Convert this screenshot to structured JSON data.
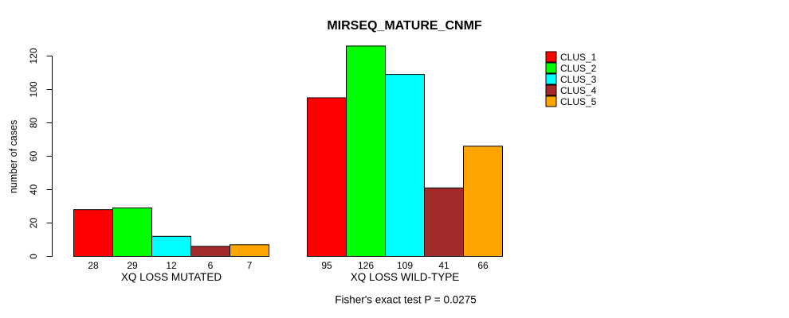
{
  "chart_data": {
    "type": "bar",
    "title": "MIRSEQ_MATURE_CNMF",
    "ylabel": "number of cases",
    "ylim": [
      0,
      120
    ],
    "yticks": [
      0,
      20,
      40,
      60,
      80,
      100,
      120
    ],
    "grid": false,
    "legend_position": "top-right",
    "categories": [
      "XQ LOSS MUTATED",
      "XQ LOSS WILD-TYPE"
    ],
    "series": [
      {
        "name": "CLUS_1",
        "color": "#ff0000",
        "values": [
          28,
          95
        ]
      },
      {
        "name": "CLUS_2",
        "color": "#00ff00",
        "values": [
          29,
          126
        ]
      },
      {
        "name": "CLUS_3",
        "color": "#00ffff",
        "values": [
          12,
          109
        ]
      },
      {
        "name": "CLUS_4",
        "color": "#a52a2a",
        "values": [
          6,
          41
        ]
      },
      {
        "name": "CLUS_5",
        "color": "#ffa500",
        "values": [
          7,
          66
        ]
      }
    ],
    "bar_value_labels": [
      [
        28,
        29,
        12,
        6,
        7
      ],
      [
        95,
        126,
        109,
        41,
        66
      ]
    ],
    "footnote": "Fisher's exact test P = 0.0275",
    "axis_color": "#000000",
    "bar_border_color": "#000000"
  }
}
